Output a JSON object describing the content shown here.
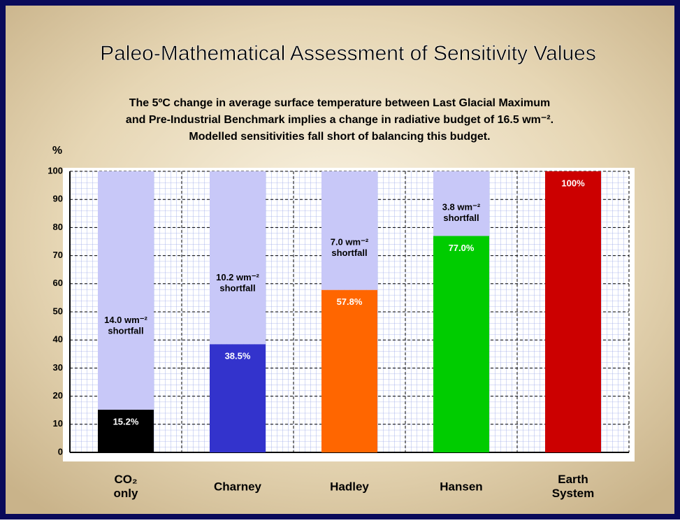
{
  "chart_data": {
    "type": "stacked_bar",
    "title": "Paleo-Mathematical Assessment of Sensitivity Values",
    "subtitle": [
      "The 5ºC change in average surface temperature between Last Glacial Maximum",
      "and Pre-Industrial Benchmark implies a change in radiative budget of 16.5 wm⁻².",
      "Modelled sensitivities fall short of balancing this budget."
    ],
    "y_label": "%",
    "categories": [
      "CO₂ only",
      "Charney",
      "Hadley",
      "Hansen",
      "Earth System"
    ],
    "series": [
      {
        "colors": [
          "#000000",
          "#3333cc",
          "#ff6600",
          "#00cc00",
          "#cc0000"
        ],
        "values": [
          15.2,
          38.5,
          57.8,
          77.0,
          100
        ],
        "value_labels": [
          "15.2%",
          "38.5%",
          "57.8%",
          "77.0%",
          "100%"
        ]
      },
      {
        "color": "#c8c8f8",
        "values": [
          84.8,
          61.5,
          42.2,
          23.0,
          0
        ]
      }
    ],
    "annotations": [
      "14.0 wm⁻² shortfall",
      "10.2 wm⁻² shortfall",
      "7.0 wm⁻² shortfall",
      "3.8 wm⁻² shortfall"
    ],
    "ylim": [
      0,
      100
    ],
    "yticks": [
      0,
      10,
      20,
      30,
      40,
      50,
      60,
      70,
      80,
      90,
      100
    ],
    "grid": true
  }
}
